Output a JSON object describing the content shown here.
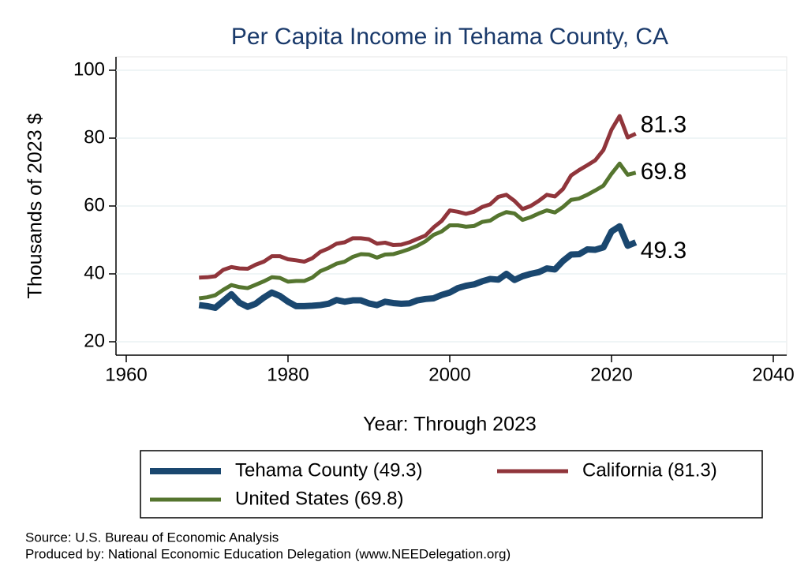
{
  "chart_data": {
    "type": "line",
    "title": "Per Capita Income in Tehama County, CA",
    "x_label": "Year: Through 2023",
    "y_label": "Thousands of 2023 $",
    "x": [
      1969,
      1970,
      1971,
      1972,
      1973,
      1974,
      1975,
      1976,
      1977,
      1978,
      1979,
      1980,
      1981,
      1982,
      1983,
      1984,
      1985,
      1986,
      1987,
      1988,
      1989,
      1990,
      1991,
      1992,
      1993,
      1994,
      1995,
      1996,
      1997,
      1998,
      1999,
      2000,
      2001,
      2002,
      2003,
      2004,
      2005,
      2006,
      2007,
      2008,
      2009,
      2010,
      2011,
      2012,
      2013,
      2014,
      2015,
      2016,
      2017,
      2018,
      2019,
      2020,
      2021,
      2022,
      2023
    ],
    "series": [
      {
        "name": "Tehama County (49.3)",
        "color": "#1a476f",
        "width": 8,
        "values": [
          30.8,
          30.5,
          30.0,
          32,
          34,
          31.5,
          30.3,
          31.2,
          33,
          34.5,
          33.5,
          31.8,
          30.5,
          30.5,
          30.6,
          30.8,
          31.2,
          32.3,
          31.8,
          32.2,
          32.2,
          31.3,
          30.8,
          31.8,
          31.4,
          31.2,
          31.3,
          32.2,
          32.6,
          32.8,
          33.8,
          34.5,
          35.8,
          36.5,
          36.9,
          37.8,
          38.5,
          38.3,
          40.0,
          38.2,
          39.3,
          40.0,
          40.5,
          41.6,
          41.3,
          43.8,
          45.7,
          45.8,
          47.2,
          47.1,
          47.8,
          52.5,
          54.0,
          48.3,
          49.3
        ]
      },
      {
        "name": "California (81.3)",
        "color": "#90353b",
        "width": 5,
        "values": [
          38.9,
          39.0,
          39.3,
          41.2,
          42.0,
          41.6,
          41.5,
          42.7,
          43.6,
          45.2,
          45.2,
          44.3,
          44.0,
          43.6,
          44.6,
          46.5,
          47.5,
          48.9,
          49.3,
          50.5,
          50.5,
          50.2,
          48.9,
          49.2,
          48.5,
          48.6,
          49.3,
          50.3,
          51.3,
          53.7,
          55.6,
          58.7,
          58.3,
          57.7,
          58.3,
          59.7,
          60.5,
          62.7,
          63.3,
          61.5,
          59.1,
          60.0,
          61.5,
          63.3,
          62.8,
          65.0,
          69.0,
          70.6,
          72.0,
          73.5,
          76.5,
          82.5,
          86.5,
          80.2,
          81.3
        ]
      },
      {
        "name": "United States (69.8)",
        "color": "#55752f",
        "width": 5,
        "values": [
          32.8,
          33.1,
          33.7,
          35.3,
          36.7,
          36.1,
          35.8,
          36.8,
          37.8,
          39.0,
          38.8,
          37.7,
          37.9,
          37.9,
          38.9,
          40.8,
          41.8,
          43.0,
          43.6,
          45.0,
          45.8,
          45.7,
          44.8,
          45.7,
          45.8,
          46.5,
          47.3,
          48.3,
          49.6,
          51.5,
          52.5,
          54.3,
          54.3,
          53.9,
          54.1,
          55.3,
          55.7,
          57.2,
          58.2,
          57.8,
          55.9,
          56.7,
          57.8,
          58.7,
          58.1,
          59.7,
          61.8,
          62.2,
          63.3,
          64.6,
          66.0,
          69.5,
          72.5,
          69.2,
          69.8
        ]
      }
    ],
    "xlim": [
      1960,
      2040
    ],
    "xticks": [
      1960,
      1980,
      2000,
      2020,
      2040
    ],
    "ylim": [
      20,
      100
    ],
    "yticks": [
      20,
      40,
      60,
      80,
      100
    ],
    "grid": true,
    "notes": [
      "Source: U.S. Bureau of Economic Analysis",
      "Produced by: National Economic Education Delegation (www.NEEDelegation.org)"
    ]
  }
}
